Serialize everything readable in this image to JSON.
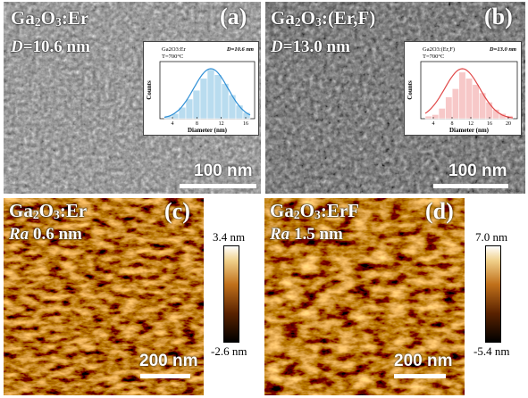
{
  "panels": {
    "a": {
      "letter": "(a)",
      "material": {
        "p1": "Ga",
        "s1": "2",
        "p2": "O",
        "s2": "3",
        "p3": ":Er"
      },
      "size_symbol": "D",
      "size_value": "=10.6 nm",
      "scale_bar": "100 nm",
      "inset": {
        "title": "Ga2O3:Er",
        "temp": "T=700°C",
        "size_label": "D=10.6 nm",
        "xlabel": "Diameter (nm)",
        "ylabel": "Counts",
        "ticks": [
          "4",
          "8",
          "12",
          "16"
        ],
        "bar_color": "#b9dcef",
        "curve_color": "#2f8fd6"
      }
    },
    "b": {
      "letter": "(b)",
      "material": {
        "p1": "Ga",
        "s1": "2",
        "p2": "O",
        "s2": "3",
        "p3": ":(Er,F)"
      },
      "size_symbol": "D",
      "size_value": "=13.0 nm",
      "scale_bar": "100 nm",
      "inset": {
        "title": "Ga2O3:(Er,F)",
        "temp": "T=700°C",
        "size_label": "D=13.0 nm",
        "xlabel": "Diameter (nm)",
        "ylabel": "Counts",
        "ticks": [
          "4",
          "8",
          "12",
          "16",
          "20"
        ],
        "bar_color": "#f7c8c8",
        "curve_color": "#e04848"
      }
    },
    "c": {
      "letter": "(c)",
      "material": {
        "p1": "Ga",
        "s1": "2",
        "p2": "O",
        "s2": "3",
        "p3": ":Er"
      },
      "ra_symbol": "Ra",
      "ra_value": " 0.6 nm",
      "scale_bar": "200 nm",
      "colorbar": {
        "max": "3.4 nm",
        "min": "-2.6 nm"
      }
    },
    "d": {
      "letter": "(d)",
      "material": {
        "p1": "Ga",
        "s1": "2",
        "p2": "O",
        "s2": "3",
        "p3": ":ErF"
      },
      "ra_symbol": "Ra",
      "ra_value": " 1.5 nm",
      "scale_bar": "200 nm",
      "colorbar": {
        "max": "7.0 nm",
        "min": "-5.4 nm"
      }
    }
  }
}
